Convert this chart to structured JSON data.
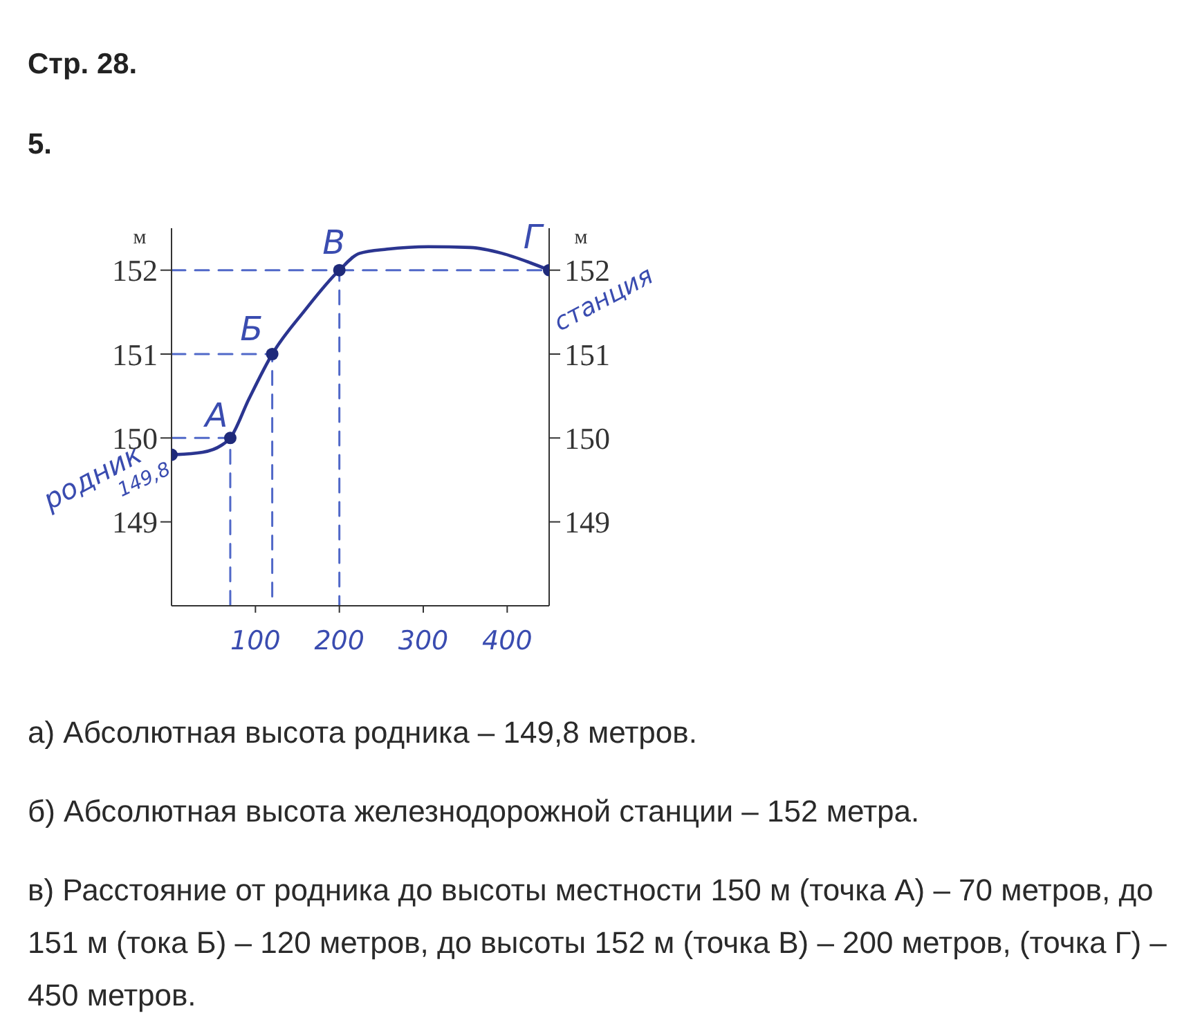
{
  "chart_data": {
    "type": "line",
    "title": "Стр. 28.",
    "subtitle": "5.",
    "ylabel": "м",
    "y2label": "м",
    "xlim": [
      0,
      450
    ],
    "xticks": [
      100,
      200,
      300,
      400
    ],
    "ylim": [
      148,
      152.5
    ],
    "yticks": [
      149,
      150,
      151,
      152
    ],
    "y2lim": [
      148,
      152.5
    ],
    "y2ticks": [
      149,
      150,
      151,
      152
    ],
    "series": [
      {
        "color": "#2b3590",
        "marker": "none",
        "line_style": "solid",
        "x": [
          0,
          37,
          59,
          70,
          92,
          120,
          158,
          200,
          224,
          257,
          306,
          356,
          394,
          427,
          450
        ],
        "values": [
          149.8,
          149.83,
          149.91,
          150,
          150.46,
          151,
          151.51,
          152,
          152.2,
          152.25,
          152.28,
          152.27,
          152.2,
          152.09,
          152
        ]
      },
      {
        "color": "#5068c8",
        "marker": "none",
        "line_style": "dashed",
        "x": [
          0,
          70,
          70
        ],
        "values": [
          150,
          150,
          148
        ]
      },
      {
        "color": "#5068c8",
        "marker": "none",
        "line_style": "dashed",
        "x": [
          0,
          120,
          120
        ],
        "values": [
          151,
          151,
          148
        ]
      },
      {
        "color": "#5068c8",
        "marker": "none",
        "line_style": "dashed",
        "x": [
          0,
          200,
          200
        ],
        "values": [
          152,
          152,
          148
        ]
      },
      {
        "color": "#5068c8",
        "marker": "none",
        "line_style": "dashed",
        "x": [
          200,
          450
        ],
        "values": [
          152,
          152
        ]
      },
      {
        "type": "scatter",
        "color": "#1f2a7a",
        "marker": "circle",
        "x": [
          0,
          70,
          120,
          200,
          450
        ],
        "values": [
          149.8,
          150,
          151,
          152,
          152
        ]
      }
    ],
    "annotations": [
      {
        "text": "родник",
        "x": 0,
        "y": 149.8
      },
      {
        "text": "149,8",
        "x": 0,
        "y": 149.8
      },
      {
        "text": "А",
        "x": 70,
        "y": 150
      },
      {
        "text": "Б",
        "x": 120,
        "y": 151
      },
      {
        "text": "В",
        "x": 200,
        "y": 152
      },
      {
        "text": "Г",
        "x": 450,
        "y": 152
      },
      {
        "text": "станция",
        "x": 450,
        "y": 152
      },
      "а) Абсолютная высота родника – 149,8 метров.",
      "б) Абсолютная высота железнодорожной станции – 152 метра.",
      "в) Расстояние от родника до высоты местности 150 м (точка А) – 70 метров, до 151 м (тока Б) – 120 метров, до высоты 152 м (точка В) – 200 метров, (точка Г) – 450 метров."
    ]
  }
}
